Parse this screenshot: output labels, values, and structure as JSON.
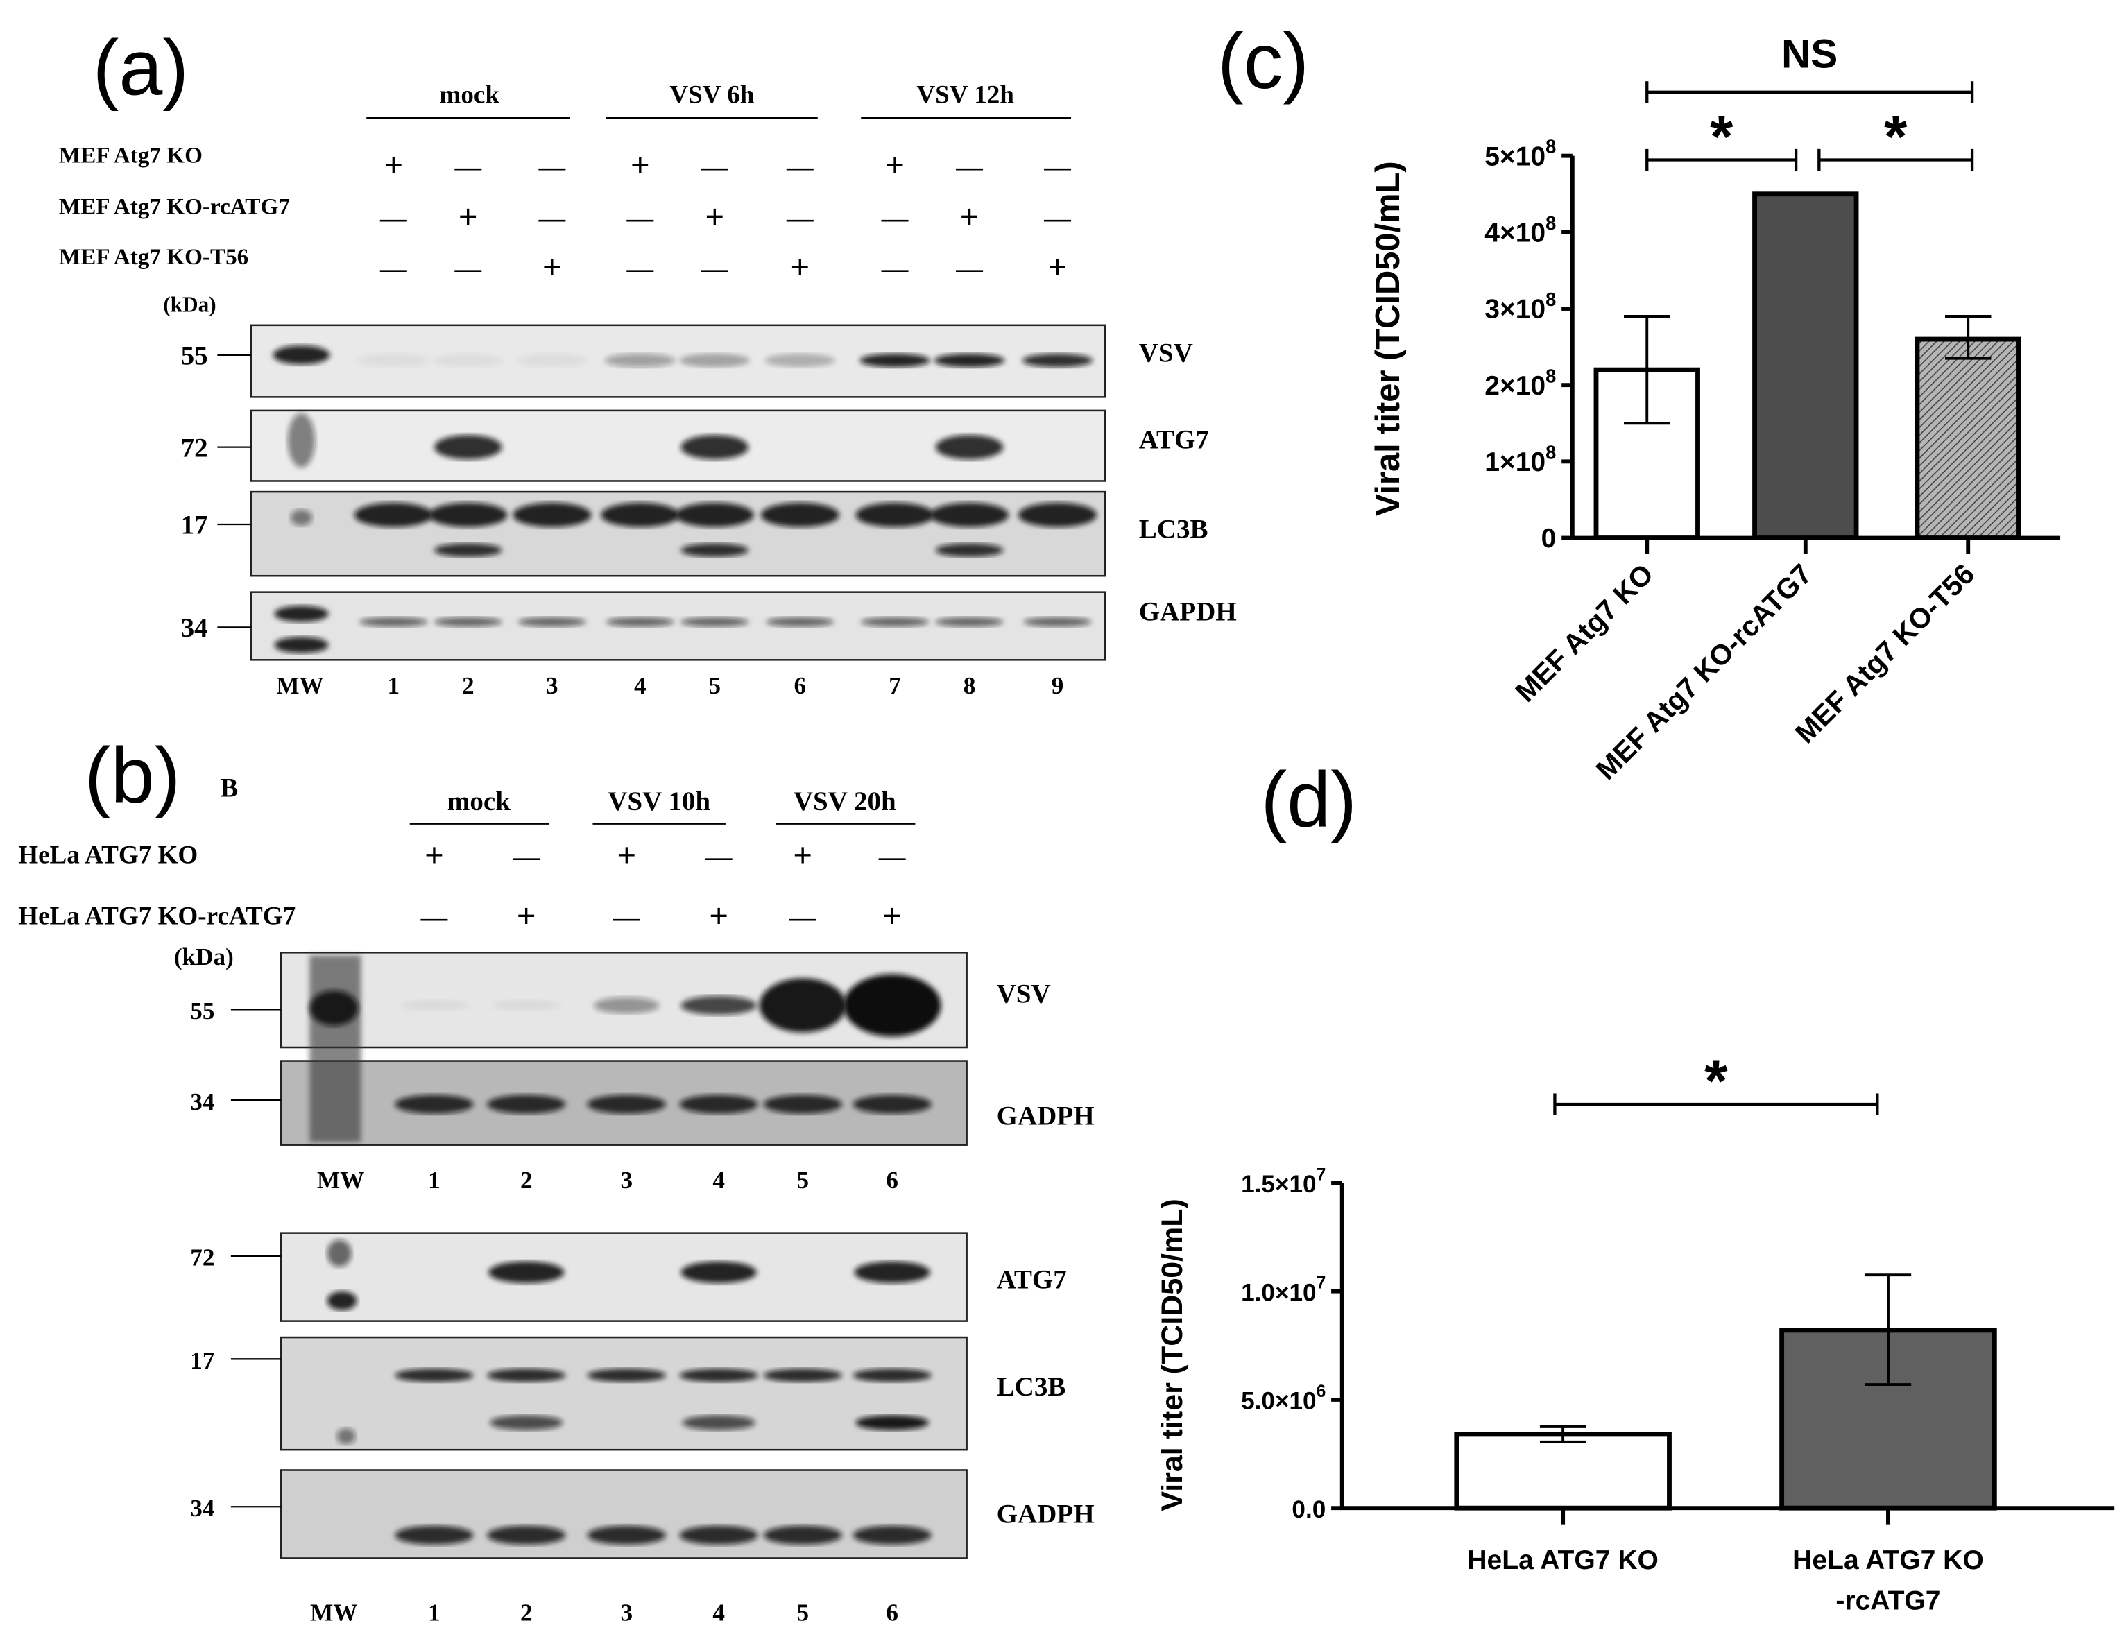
{
  "panel_a": {
    "label": "(a)",
    "groups": [
      "mock",
      "VSV 6h",
      "VSV 12h"
    ],
    "rows": [
      {
        "label": "MEF Atg7 KO",
        "signs": [
          "+",
          "—",
          "—",
          "+",
          "—",
          "—",
          "+",
          "—",
          "—"
        ]
      },
      {
        "label": "MEF Atg7 KO-rcATG7",
        "signs": [
          "—",
          "+",
          "—",
          "—",
          "+",
          "—",
          "—",
          "+",
          "—"
        ]
      },
      {
        "label": "MEF Atg7 KO-T56",
        "signs": [
          "—",
          "—",
          "+",
          "—",
          "—",
          "+",
          "—",
          "—",
          "+"
        ]
      }
    ],
    "kda_label": "(kDa)",
    "blots": [
      {
        "name": "VSV",
        "kda": "55"
      },
      {
        "name": "ATG7",
        "kda": "72"
      },
      {
        "name": "LC3B",
        "kda": "17"
      },
      {
        "name": "GAPDH",
        "kda": "34"
      }
    ],
    "lanes": [
      "MW",
      "1",
      "2",
      "3",
      "4",
      "5",
      "6",
      "7",
      "8",
      "9"
    ]
  },
  "panel_b": {
    "label": "(b)",
    "sublabel": "B",
    "groups": [
      "mock",
      "VSV 10h",
      "VSV 20h"
    ],
    "rows": [
      {
        "label": "HeLa ATG7 KO",
        "signs": [
          "+",
          "—",
          "+",
          "—",
          "+",
          "—"
        ]
      },
      {
        "label": "HeLa ATG7 KO-rcATG7",
        "signs": [
          "—",
          "+",
          "—",
          "+",
          "—",
          "+"
        ]
      }
    ],
    "kda_label": "(kDa)",
    "blots": [
      {
        "name": "VSV",
        "kda": "55"
      },
      {
        "name": "GADPH",
        "kda": "34"
      },
      {
        "name": "ATG7",
        "kda": "72"
      },
      {
        "name": "LC3B",
        "kda": "17"
      },
      {
        "name": "GADPH",
        "kda": "34"
      }
    ],
    "lanes": [
      "MW",
      "1",
      "2",
      "3",
      "4",
      "5",
      "6"
    ]
  },
  "chart_data": [
    {
      "panel": "(c)",
      "type": "bar",
      "ylabel": "Viral titer (TCID50/mL)",
      "categories": [
        "MEF Atg7 KO",
        "MEF Atg7 KO-rcATG7",
        "MEF Atg7 KO-T56"
      ],
      "values": [
        220000000,
        450000000,
        260000000
      ],
      "error_low": [
        150000000,
        null,
        235000000
      ],
      "error_high": [
        290000000,
        null,
        290000000
      ],
      "fills": [
        "#ffffff",
        "#4d4d4d",
        "hatched-gray"
      ],
      "ylim": [
        0,
        500000000
      ],
      "yticks": [
        {
          "value": 0,
          "label": "0"
        },
        {
          "value": 100000000,
          "label": "1×10",
          "exp": "8"
        },
        {
          "value": 200000000,
          "label": "2×10",
          "exp": "8"
        },
        {
          "value": 300000000,
          "label": "3×10",
          "exp": "8"
        },
        {
          "value": 400000000,
          "label": "4×10",
          "exp": "8"
        },
        {
          "value": 500000000,
          "label": "5×10",
          "exp": "8"
        }
      ],
      "significance": [
        {
          "from": 0,
          "to": 2,
          "label": "NS"
        },
        {
          "from": 0,
          "to": 1,
          "label": "*"
        },
        {
          "from": 1,
          "to": 2,
          "label": "*"
        }
      ],
      "grid": false
    },
    {
      "panel": "(d)",
      "type": "bar",
      "ylabel": "Viral titer (TCID50/mL)",
      "categories": [
        "HeLa ATG7 KO",
        "HeLa ATG7 KO\n-rcATG7"
      ],
      "category_lines": [
        [
          "HeLa ATG7 KO"
        ],
        [
          "HeLa ATG7 KO",
          "-rcATG7"
        ]
      ],
      "values": [
        3400000,
        8200000
      ],
      "error_low": [
        3050000,
        5700000
      ],
      "error_high": [
        3750000,
        10750000
      ],
      "fills": [
        "#ffffff",
        "#606060"
      ],
      "ylim": [
        0,
        15000000
      ],
      "yticks": [
        {
          "value": 0,
          "label": "0.0"
        },
        {
          "value": 5000000,
          "label": "5.0×10",
          "exp": "6"
        },
        {
          "value": 10000000,
          "label": "1.0×10",
          "exp": "7"
        },
        {
          "value": 15000000,
          "label": "1.5×10",
          "exp": "7"
        }
      ],
      "significance": [
        {
          "from": 0,
          "to": 1,
          "label": "*"
        }
      ],
      "grid": false
    }
  ]
}
